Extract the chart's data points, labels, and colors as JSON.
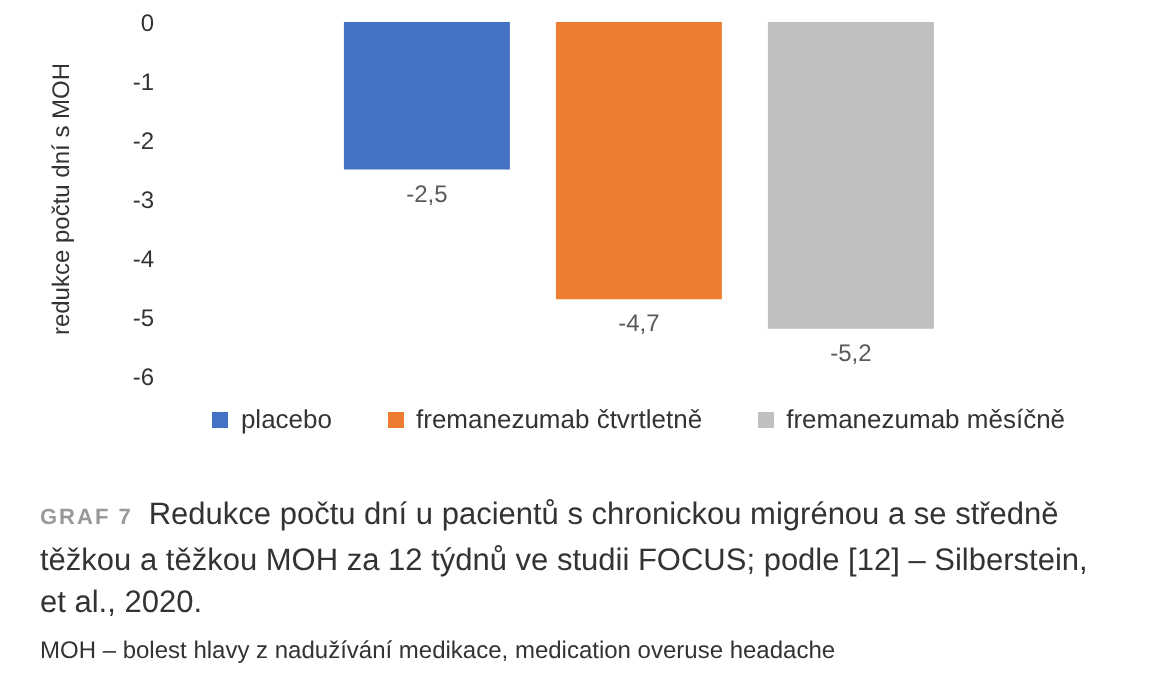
{
  "chart_data": {
    "type": "bar",
    "title": "Redukce počtu dní u pacientů s chronickou migrénou a se středně těžkou a těžkou MOH za 12 týdnů ve studii FOCUS; podle [12] – Silberstein, et al., 2020.",
    "subtitle": "GRAF 7",
    "ylabel": "redukce počtu dní s MOH",
    "categories": [
      null
    ],
    "series": [
      {
        "name": "placebo",
        "color": "#4472c4",
        "values": [
          -2.5
        ],
        "value_labels": [
          "-2,5"
        ]
      },
      {
        "name": "fremanezumab čtvrtletně",
        "color": "#ed7d31",
        "values": [
          -4.7
        ],
        "value_labels": [
          "-4,7"
        ]
      },
      {
        "name": "fremanezumab měsíčně",
        "color": "#bfbfbf",
        "values": [
          -5.2
        ],
        "value_labels": [
          "-5,2"
        ]
      }
    ],
    "ylim": [
      -6,
      0
    ],
    "yticks": [
      0,
      -1,
      -2,
      -3,
      -4,
      -5,
      -6
    ],
    "grid": false,
    "legend": "bottom",
    "annotations": [
      "MOH – bolest hlavy z nadužívání medikace, medication overuse headache"
    ]
  }
}
